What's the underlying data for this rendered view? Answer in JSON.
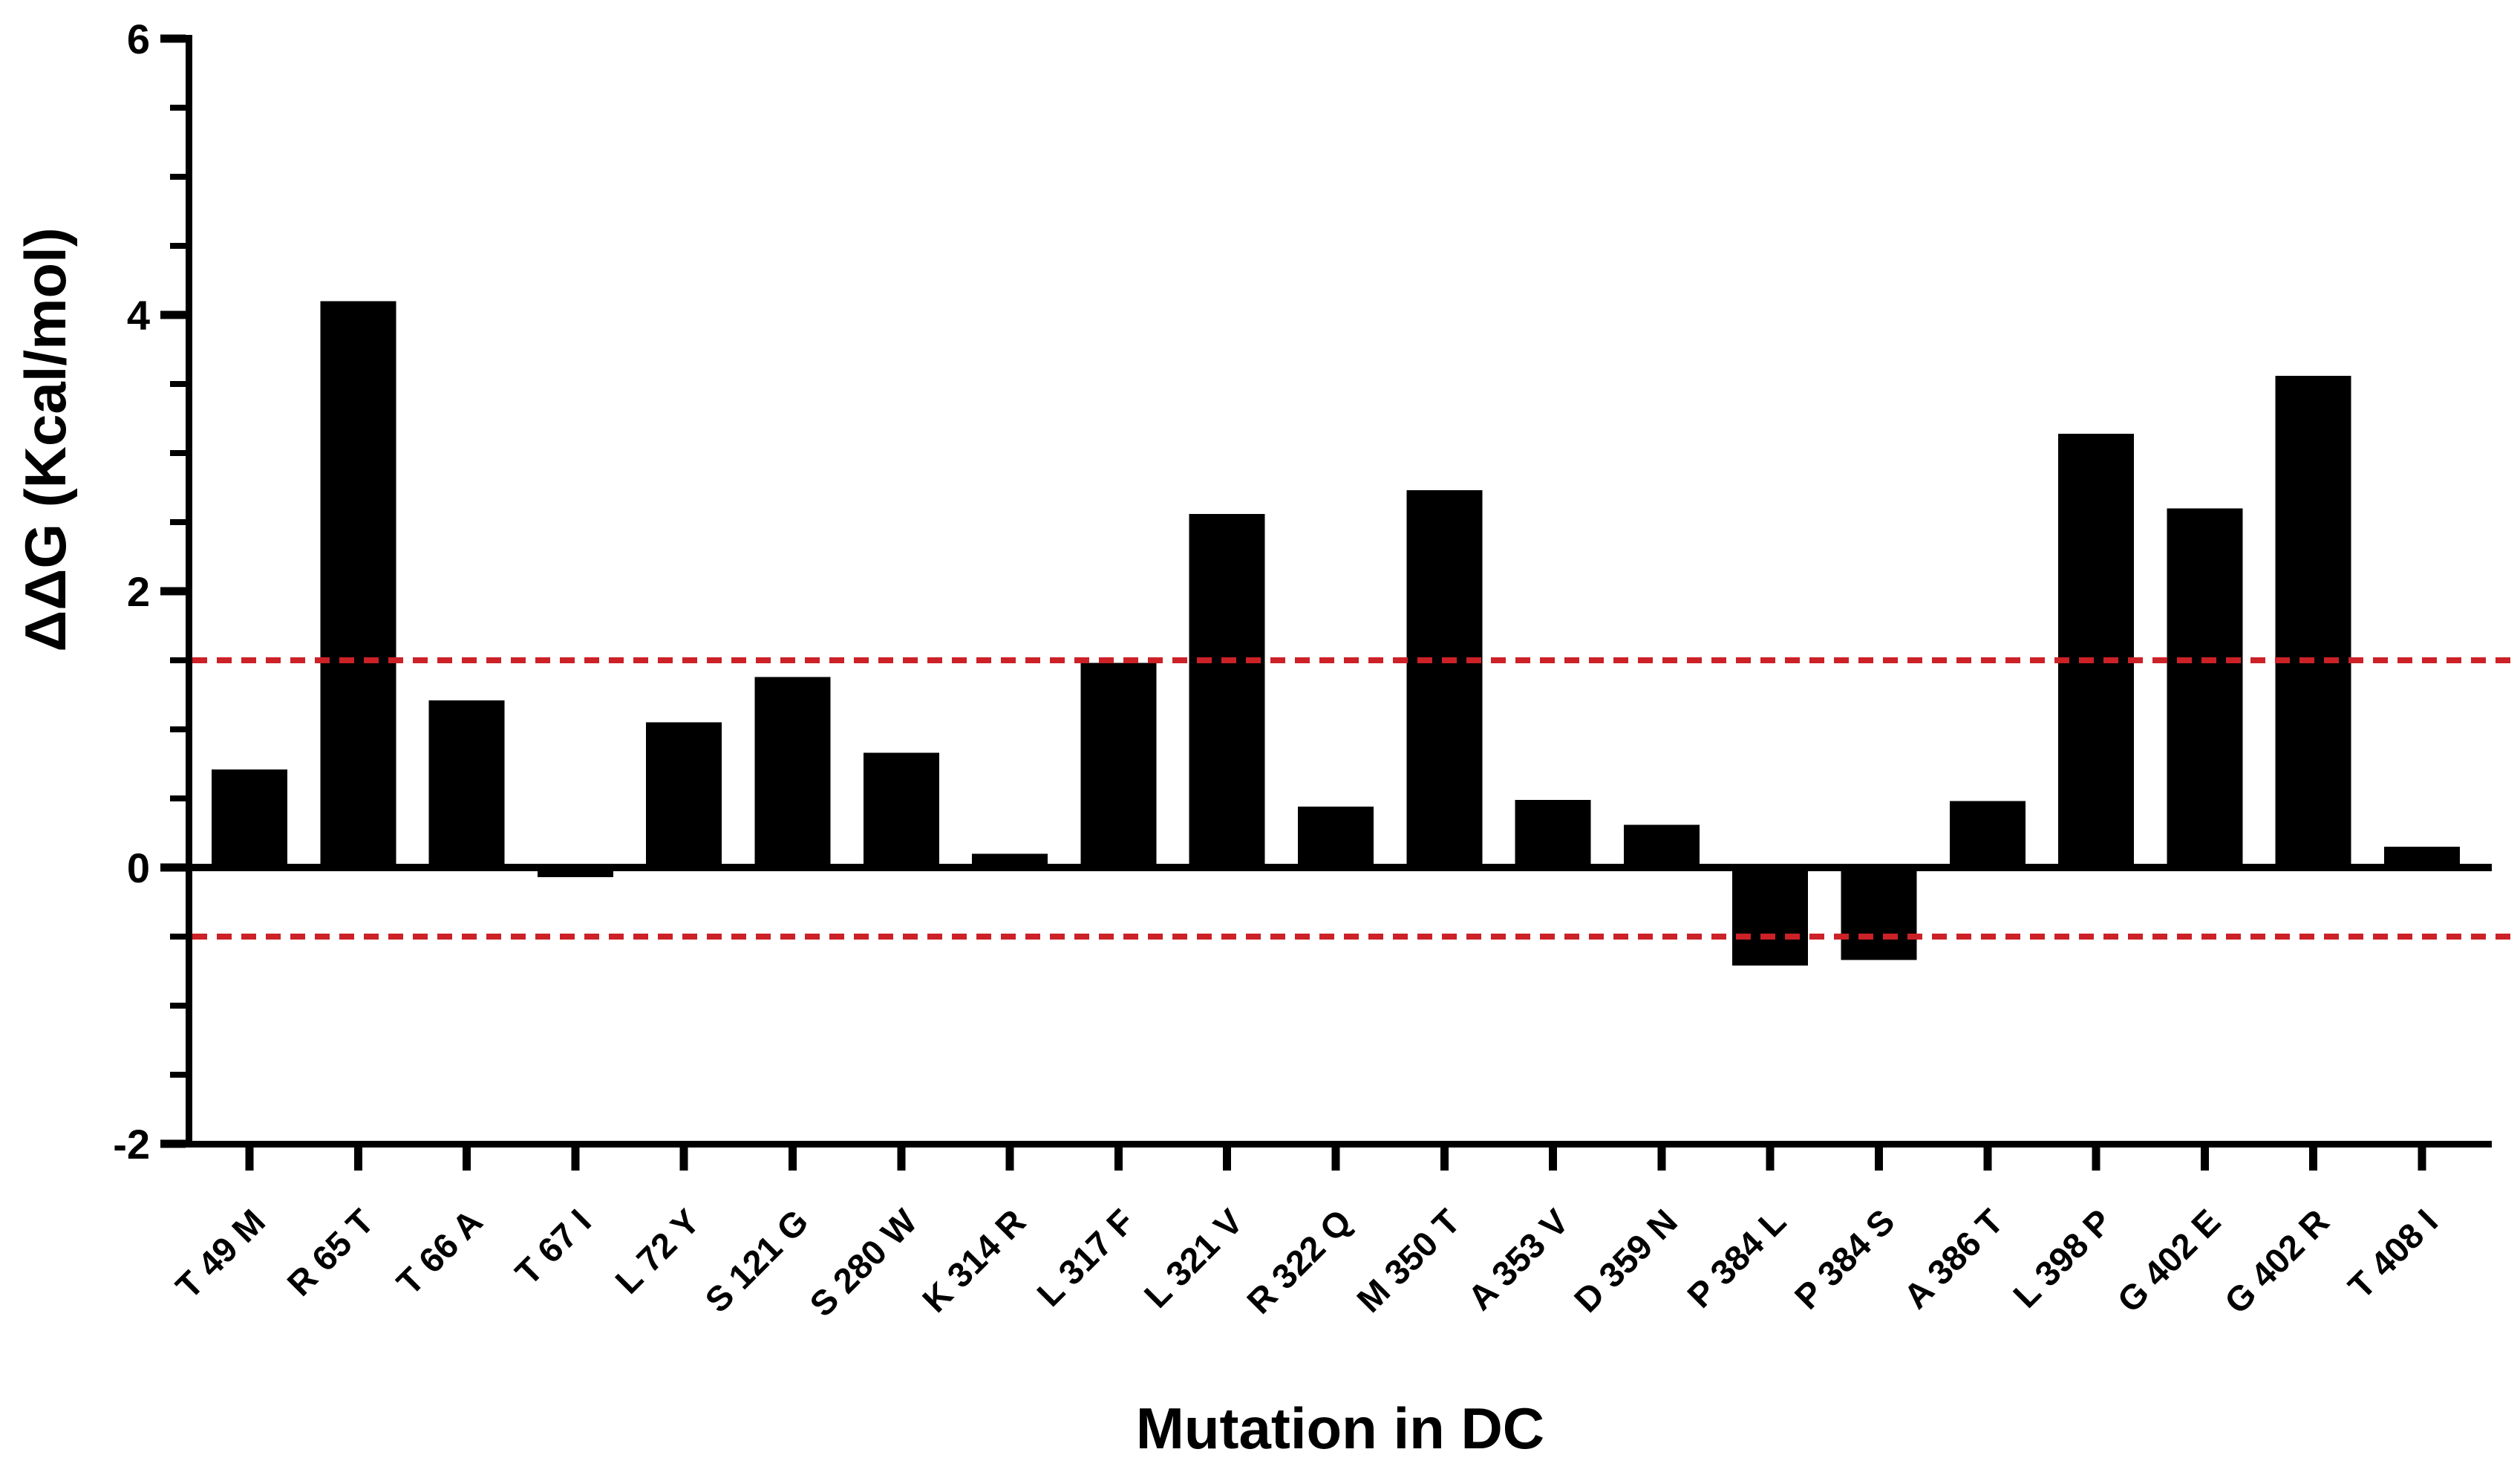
{
  "figure": {
    "background": "#ffffff",
    "bar_color": "#000000",
    "axis_color": "#000000",
    "threshold_color": "#cc2127"
  },
  "chart_data": {
    "type": "bar",
    "title": "",
    "xlabel": "Mutation in DC",
    "ylabel": "ΔΔG (Kcal/mol)",
    "categories": [
      "T 49 M",
      "R 65 T",
      "T 66 A",
      "T 67 I",
      "L 72 Y",
      "S 121 G",
      "S 280 W",
      "K 314 R",
      "L 317 F",
      "L 321 V",
      "R 322 Q",
      "M 350 T",
      "A 353 V",
      "D 359 N",
      "P 384 L",
      "P 384 S",
      "A 386 T",
      "L 398 P",
      "G 402 E",
      "G 402 R",
      "T 408 I"
    ],
    "values": [
      0.71,
      4.1,
      1.21,
      -0.07,
      1.05,
      1.38,
      0.83,
      0.1,
      1.48,
      2.56,
      0.44,
      2.73,
      0.49,
      0.31,
      -0.71,
      -0.67,
      0.48,
      3.14,
      2.6,
      3.56,
      0.15
    ],
    "ylim": [
      -2,
      6
    ],
    "yticks_major": [
      6,
      4,
      2,
      0,
      -2
    ],
    "ytick_labels": [
      "6",
      "4",
      "2",
      "0",
      "-2"
    ],
    "ytick_minor_step": 0.5,
    "thresholds": [
      1.5,
      -0.5
    ],
    "threshold_style": "dashed",
    "grid": false,
    "legend": "none"
  }
}
